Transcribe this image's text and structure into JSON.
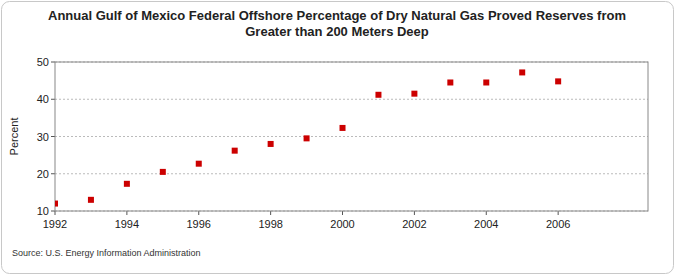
{
  "chart_data": {
    "type": "scatter",
    "title": "Annual Gulf of Mexico Federal Offshore Percentage of Dry Natural Gas Proved Reserves from Greater than 200 Meters Deep",
    "y_label": "Percent",
    "source": "Source: U.S. Energy Information Administration",
    "x": [
      1992,
      1993,
      1994,
      1995,
      1996,
      1997,
      1998,
      1999,
      2000,
      2001,
      2002,
      2003,
      2004,
      2005,
      2006
    ],
    "values": [
      12,
      13,
      17.3,
      20.5,
      22.7,
      26.2,
      28,
      29.5,
      32.3,
      41.2,
      41.5,
      44.5,
      44.5,
      47.2,
      44.8
    ],
    "color": "#cc0000",
    "marker": "square",
    "xlim": [
      1992,
      2008.5
    ],
    "ylim": [
      10,
      50
    ],
    "xticks": [
      1992,
      1994,
      1996,
      1998,
      2000,
      2002,
      2004,
      2006
    ],
    "yticks": [
      10,
      20,
      30,
      40,
      50
    ],
    "grid": true
  }
}
